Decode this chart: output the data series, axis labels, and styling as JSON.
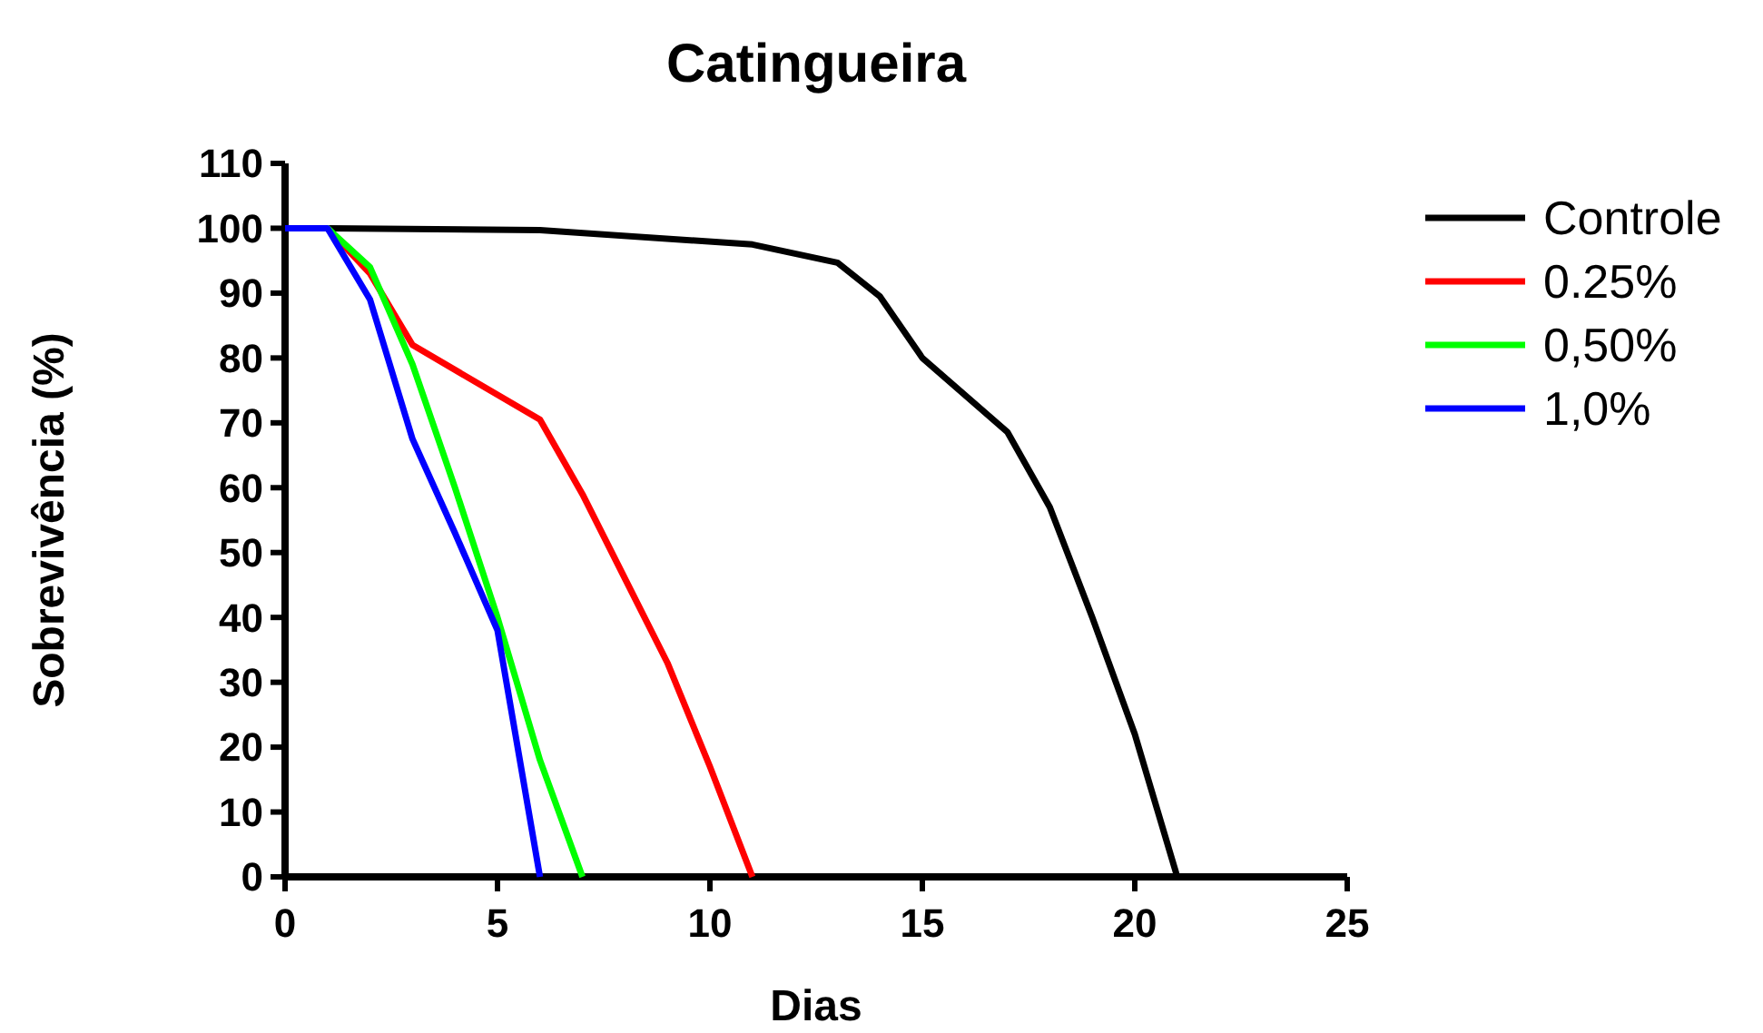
{
  "chart_data": {
    "type": "line",
    "title": "Catingueira",
    "xlabel": "Dias",
    "ylabel": "Sobrevivência (%)",
    "xlim": [
      0,
      25
    ],
    "xticks": [
      0,
      5,
      10,
      15,
      20,
      25
    ],
    "ylim": [
      0,
      110
    ],
    "yticks": [
      0,
      10,
      20,
      30,
      40,
      50,
      60,
      70,
      80,
      90,
      100,
      110
    ],
    "legend": "top right",
    "marker": "none",
    "line_style": "solid",
    "grid": false,
    "series": [
      {
        "name": "Controle",
        "color": "#000000",
        "x": [
          0,
          1,
          6,
          11,
          13,
          14,
          15,
          17,
          18,
          19,
          20,
          21
        ],
        "values": [
          100,
          100,
          99.7,
          97.5,
          94.7,
          89.5,
          80,
          68.6,
          57,
          40,
          22,
          0
        ]
      },
      {
        "name": "0.25%",
        "color": "#ff0000",
        "x": [
          0,
          1,
          2,
          3,
          6,
          7,
          8,
          9,
          10,
          11
        ],
        "values": [
          100,
          100,
          93,
          82,
          70.5,
          59,
          46,
          33,
          17,
          0
        ]
      },
      {
        "name": "0,50%",
        "color": "#00ff00",
        "x": [
          0,
          1,
          2,
          3,
          4,
          5,
          6,
          7
        ],
        "values": [
          100,
          100,
          94,
          79,
          60,
          40,
          18,
          0
        ]
      },
      {
        "name": "1,0%",
        "color": "#0000ff",
        "x": [
          0,
          1,
          2,
          3,
          4,
          5,
          6
        ],
        "values": [
          100,
          100,
          89,
          67.5,
          53,
          38,
          0
        ]
      }
    ]
  }
}
